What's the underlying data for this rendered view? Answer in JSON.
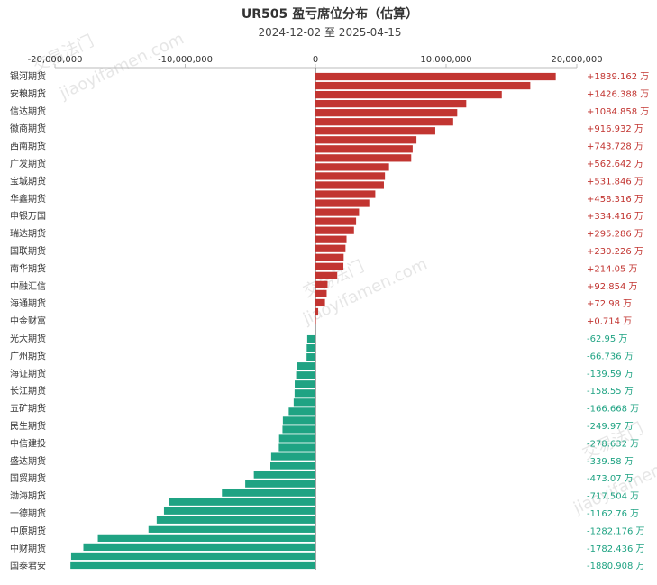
{
  "chart_data": {
    "type": "bar",
    "orientation": "horizontal",
    "title": "UR505 盈亏席位分布（估算）",
    "subtitle": "2024-12-02 至 2025-04-15",
    "xlim": [
      -20000000,
      20000000
    ],
    "xticks": [
      -20000000,
      -10000000,
      0,
      10000000,
      20000000
    ],
    "xtick_labels": [
      "-20,000,000",
      "-10,000,000",
      "0",
      "10,000,000",
      "20,000,000"
    ],
    "grid": false,
    "colors": {
      "positive": "#c23531",
      "negative": "#1fa383"
    },
    "brokers": [
      "银河期货",
      "安粮期货",
      "信达期货",
      "徽商期货",
      "西南期货",
      "广发期货",
      "宝城期货",
      "华鑫期货",
      "申银万国",
      "瑞达期货",
      "国联期货",
      "南华期货",
      "中融汇信",
      "海通期货",
      "中金财富",
      "光大期货",
      "广州期货",
      "海证期货",
      "长江期货",
      "五矿期货",
      "民生期货",
      "中信建投",
      "盛达期货",
      "国贸期货",
      "渤海期货",
      "一德期货",
      "中原期货",
      "中财期货",
      "国泰君安"
    ],
    "label_values": [
      1839.162,
      1426.388,
      1084.858,
      916.932,
      743.728,
      562.642,
      531.846,
      458.316,
      334.416,
      295.286,
      230.226,
      214.05,
      92.854,
      72.98,
      0.714,
      -62.95,
      -66.736,
      -139.59,
      -158.55,
      -166.668,
      -249.97,
      -278.632,
      -339.58,
      -473.07,
      -717.504,
      -1162.76,
      -1282.176,
      -1782.436,
      -1880.908
    ],
    "labels": [
      "+1839.162 万",
      "+1426.388 万",
      "+1084.858 万",
      "+916.932 万",
      "+743.728 万",
      "+562.642 万",
      "+531.846 万",
      "+458.316 万",
      "+334.416 万",
      "+295.286 万",
      "+230.226 万",
      "+214.05 万",
      "+92.854 万",
      "+72.98 万",
      "+0.714 万",
      "-62.95 万",
      "-66.736 万",
      "-139.59 万",
      "-158.55 万",
      "-166.668 万",
      "-249.97 万",
      "-278.632 万",
      "-339.58 万",
      "-473.07 万",
      "-717.504 万",
      "-1162.76 万",
      "-1282.176 万",
      "-1782.436 万",
      "-1880.908 万"
    ],
    "bars": [
      18390000,
      16440000,
      14260000,
      11540000,
      10850000,
      10540000,
      9170000,
      7730000,
      7440000,
      7330000,
      5630000,
      5320000,
      5240000,
      4580000,
      4120000,
      3340000,
      3110000,
      2950000,
      2380000,
      2300000,
      2160000,
      2140000,
      1670000,
      930000,
      860000,
      730000,
      210000,
      7000,
      0,
      -630000,
      -670000,
      -680000,
      -1400000,
      -1480000,
      -1590000,
      -1600000,
      -1670000,
      -2050000,
      -2500000,
      -2530000,
      -2790000,
      -2810000,
      -3400000,
      -3460000,
      -4730000,
      -5390000,
      -7180000,
      -11260000,
      -11630000,
      -12190000,
      -12820000,
      -16710000,
      -17820000,
      -18760000,
      -18810000
    ]
  },
  "watermarks": [
    "交易法门",
    "jiaoyifamen.com",
    "交易法门",
    "jiaoyifamen.com",
    "交易法门",
    "jiaoyifamen.com"
  ]
}
